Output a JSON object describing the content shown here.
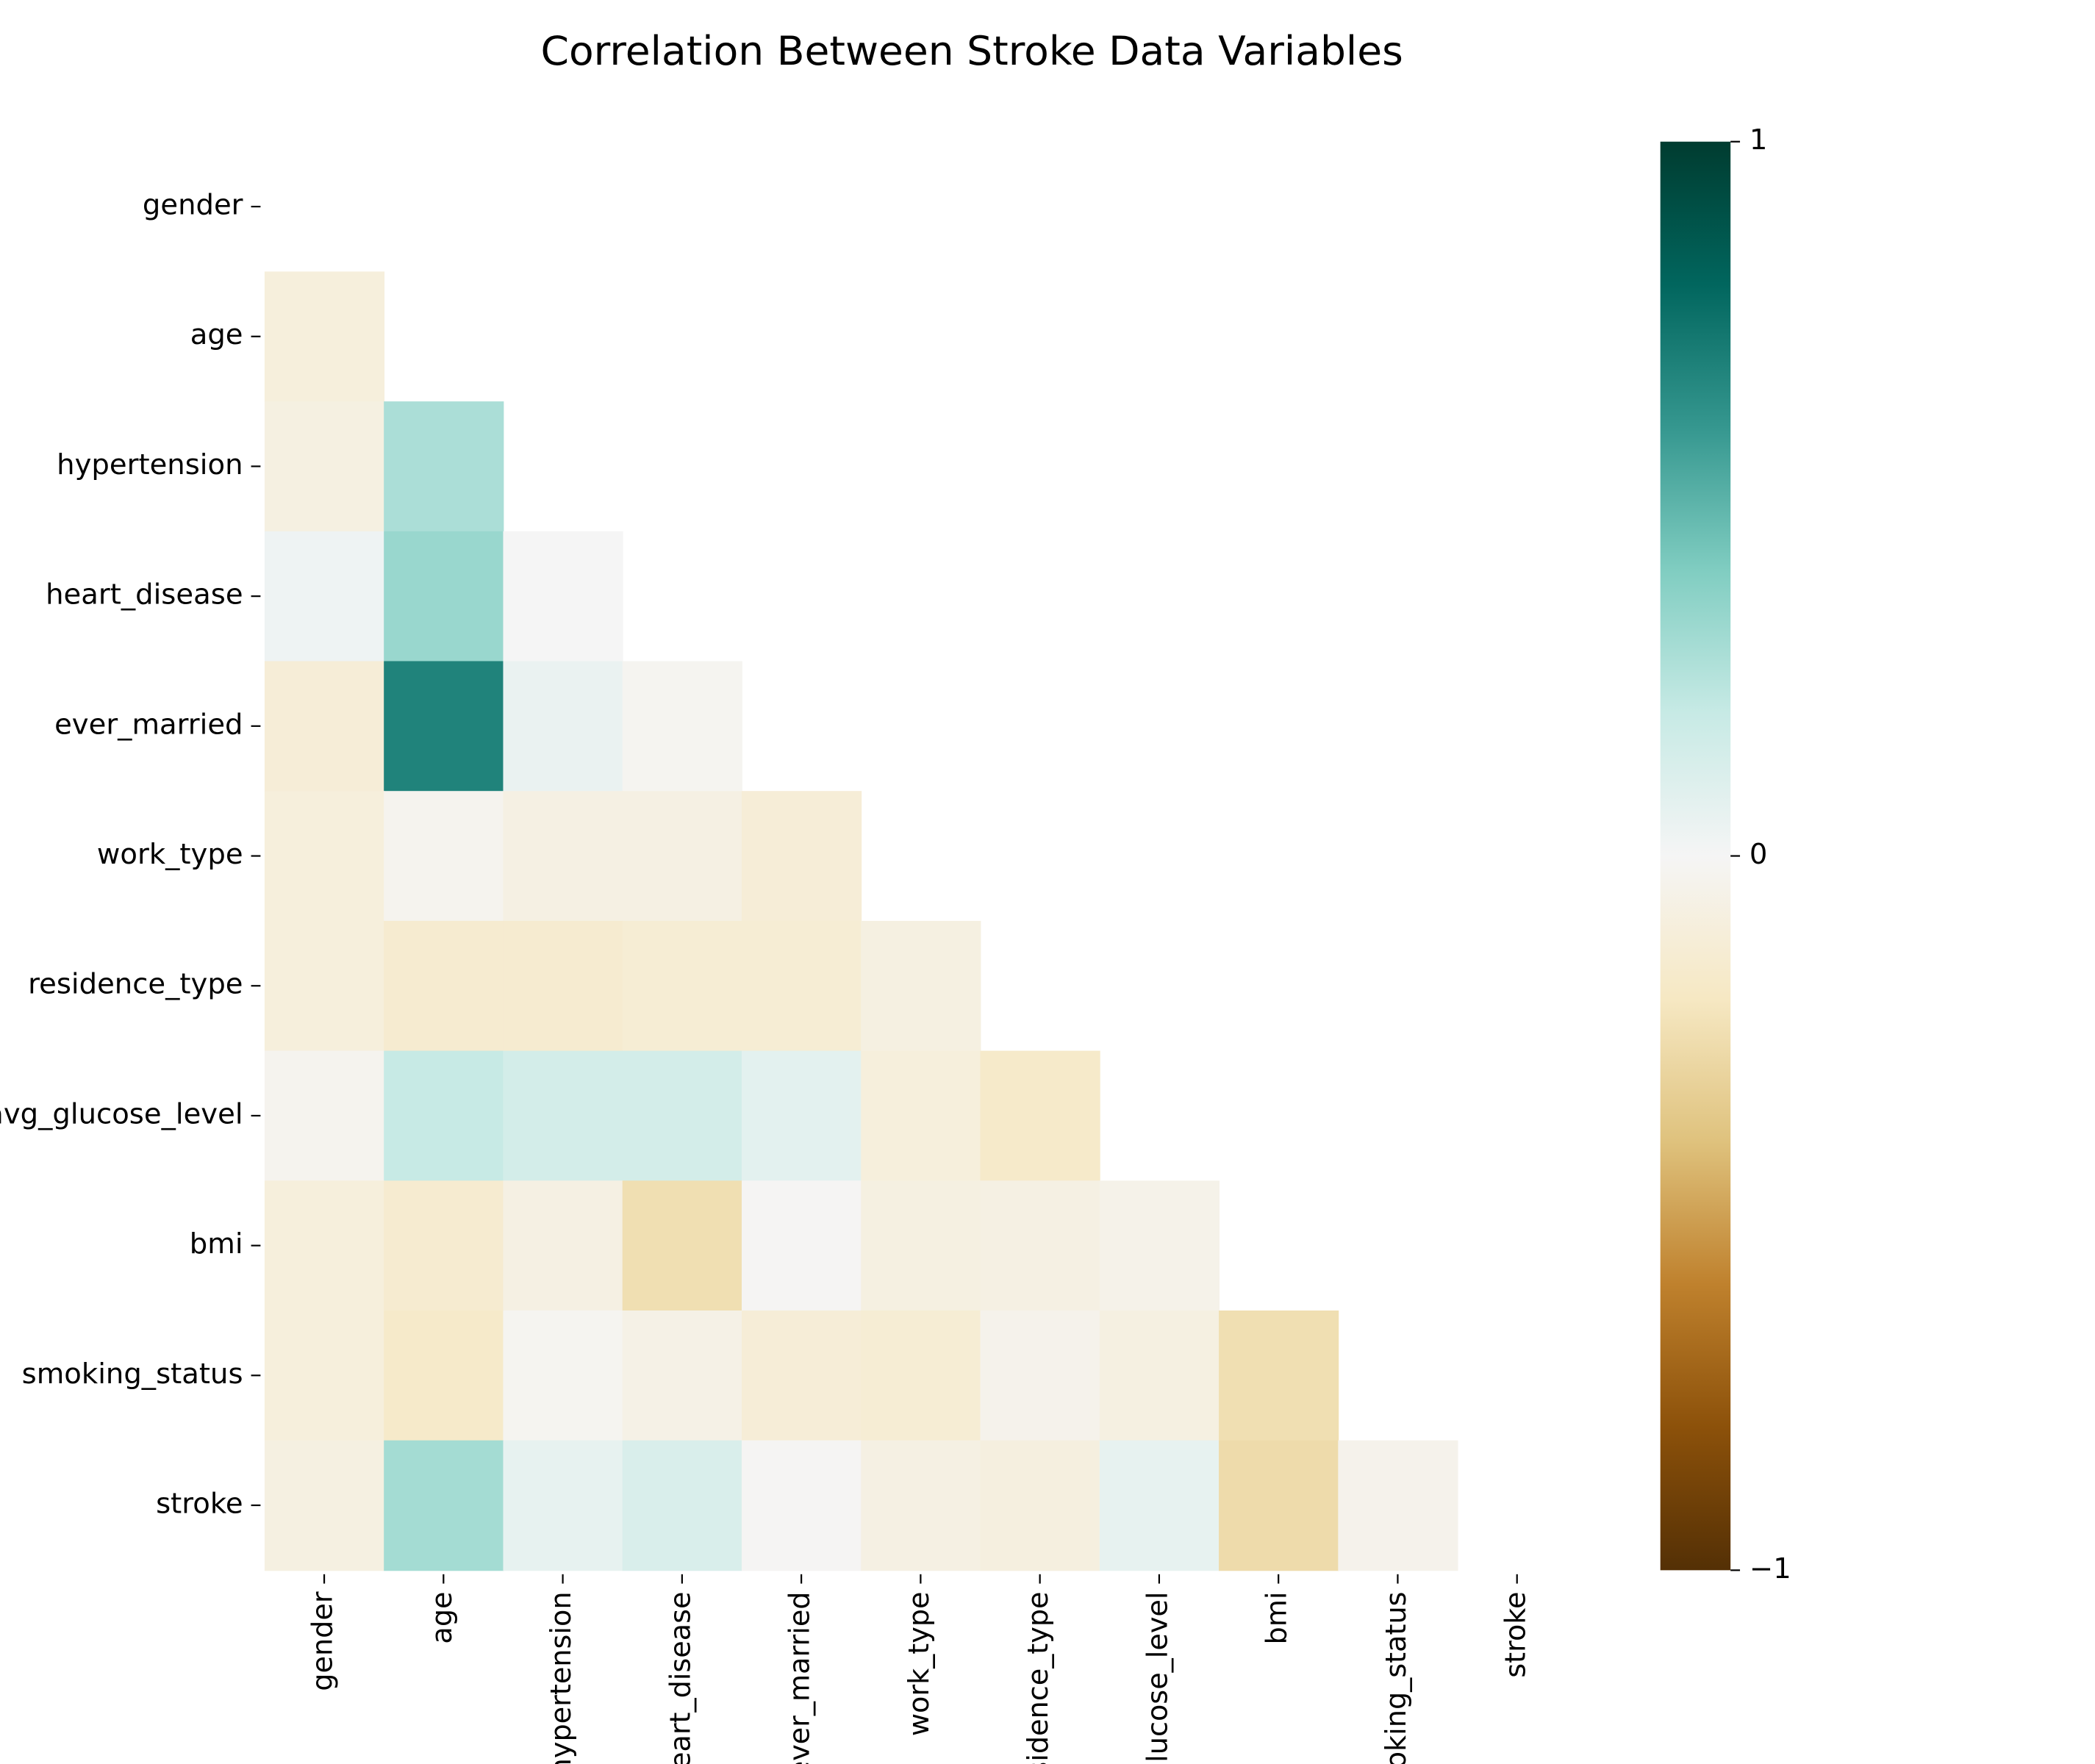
{
  "chart_data": {
    "type": "heatmap",
    "title": "Correlation Between Stroke Data Variables",
    "categories": [
      "gender",
      "age",
      "hypertension",
      "heart_disease",
      "ever_married",
      "work_type",
      "residence_type",
      "avg_glucose_level",
      "bmi",
      "smoking_status",
      "stroke"
    ],
    "values": [
      [
        null,
        null,
        null,
        null,
        null,
        null,
        null,
        null,
        null,
        null,
        null
      ],
      [
        -0.1,
        null,
        null,
        null,
        null,
        null,
        null,
        null,
        null,
        null,
        null
      ],
      [
        -0.08,
        0.28,
        null,
        null,
        null,
        null,
        null,
        null,
        null,
        null,
        null
      ],
      [
        0.03,
        0.33,
        0.0,
        null,
        null,
        null,
        null,
        null,
        null,
        null,
        null
      ],
      [
        -0.12,
        0.68,
        0.05,
        -0.02,
        null,
        null,
        null,
        null,
        null,
        null,
        null
      ],
      [
        -0.1,
        -0.03,
        -0.07,
        -0.07,
        -0.12,
        null,
        null,
        null,
        null,
        null,
        null
      ],
      [
        -0.1,
        -0.15,
        -0.15,
        -0.13,
        -0.13,
        -0.08,
        null,
        null,
        null,
        null,
        null
      ],
      [
        -0.03,
        0.2,
        0.15,
        0.15,
        0.08,
        -0.1,
        -0.17,
        null,
        null,
        null,
        null
      ],
      [
        -0.1,
        -0.15,
        -0.07,
        -0.25,
        -0.01,
        -0.08,
        -0.07,
        -0.05,
        null,
        null,
        null
      ],
      [
        -0.1,
        -0.17,
        -0.02,
        -0.06,
        -0.12,
        -0.13,
        -0.04,
        -0.08,
        -0.25,
        null,
        null
      ],
      [
        -0.08,
        0.3,
        0.06,
        0.12,
        -0.01,
        -0.07,
        -0.09,
        0.06,
        -0.27,
        -0.04,
        null
      ]
    ],
    "colormap": [
      "#543005",
      "#8c510a",
      "#bf812d",
      "#dfc27d",
      "#f6e8c3",
      "#f5f5f5",
      "#c7eae5",
      "#80cdc1",
      "#35978f",
      "#01665e",
      "#003c30"
    ],
    "clim": [
      -1,
      1
    ],
    "cticks": [
      {
        "value": -1,
        "label": "−1"
      },
      0,
      1
    ]
  }
}
